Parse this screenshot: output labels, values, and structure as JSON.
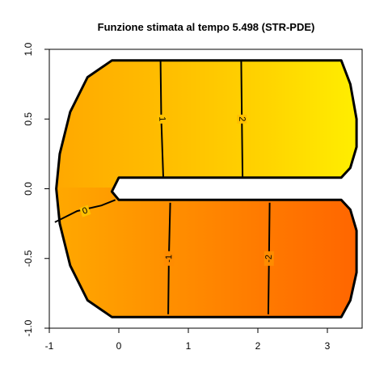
{
  "chart_data": {
    "type": "contour",
    "title": "Funzione stimata al tempo 5.498 (STR-PDE)",
    "xlabel": "",
    "ylabel": "",
    "xlim": [
      -1,
      3.5
    ],
    "ylim": [
      -1,
      1
    ],
    "x_ticks": [
      -1,
      0,
      1,
      2,
      3
    ],
    "y_ticks": [
      -1.0,
      -0.5,
      0.0,
      0.5,
      1.0
    ],
    "x_tick_labels": [
      "-1",
      "0",
      "1",
      "2",
      "3"
    ],
    "y_tick_labels": [
      "-1.0",
      "-0.5",
      "0.0",
      "0.5",
      "1.0"
    ],
    "domain": "C-shaped horseshoe",
    "color_low": "#ff6600",
    "color_high": "#ffee00",
    "contours": [
      {
        "level": 0,
        "label": "0",
        "points": [
          [
            -0.92,
            -0.24
          ],
          [
            -0.6,
            -0.16
          ],
          [
            -0.25,
            -0.12
          ],
          [
            -0.05,
            -0.08
          ]
        ]
      },
      {
        "level": 1,
        "label": "1",
        "points": [
          [
            0.6,
            0.92
          ],
          [
            0.61,
            0.5
          ],
          [
            0.64,
            0.08
          ]
        ]
      },
      {
        "level": 2,
        "label": "2",
        "points": [
          [
            1.76,
            0.92
          ],
          [
            1.77,
            0.5
          ],
          [
            1.78,
            0.08
          ]
        ]
      },
      {
        "level": -1,
        "label": "-1",
        "points": [
          [
            0.74,
            -0.1
          ],
          [
            0.72,
            -0.5
          ],
          [
            0.71,
            -0.9
          ]
        ]
      },
      {
        "level": -2,
        "label": "-2",
        "points": [
          [
            2.17,
            -0.1
          ],
          [
            2.16,
            -0.5
          ],
          [
            2.15,
            -0.9
          ]
        ]
      }
    ]
  }
}
